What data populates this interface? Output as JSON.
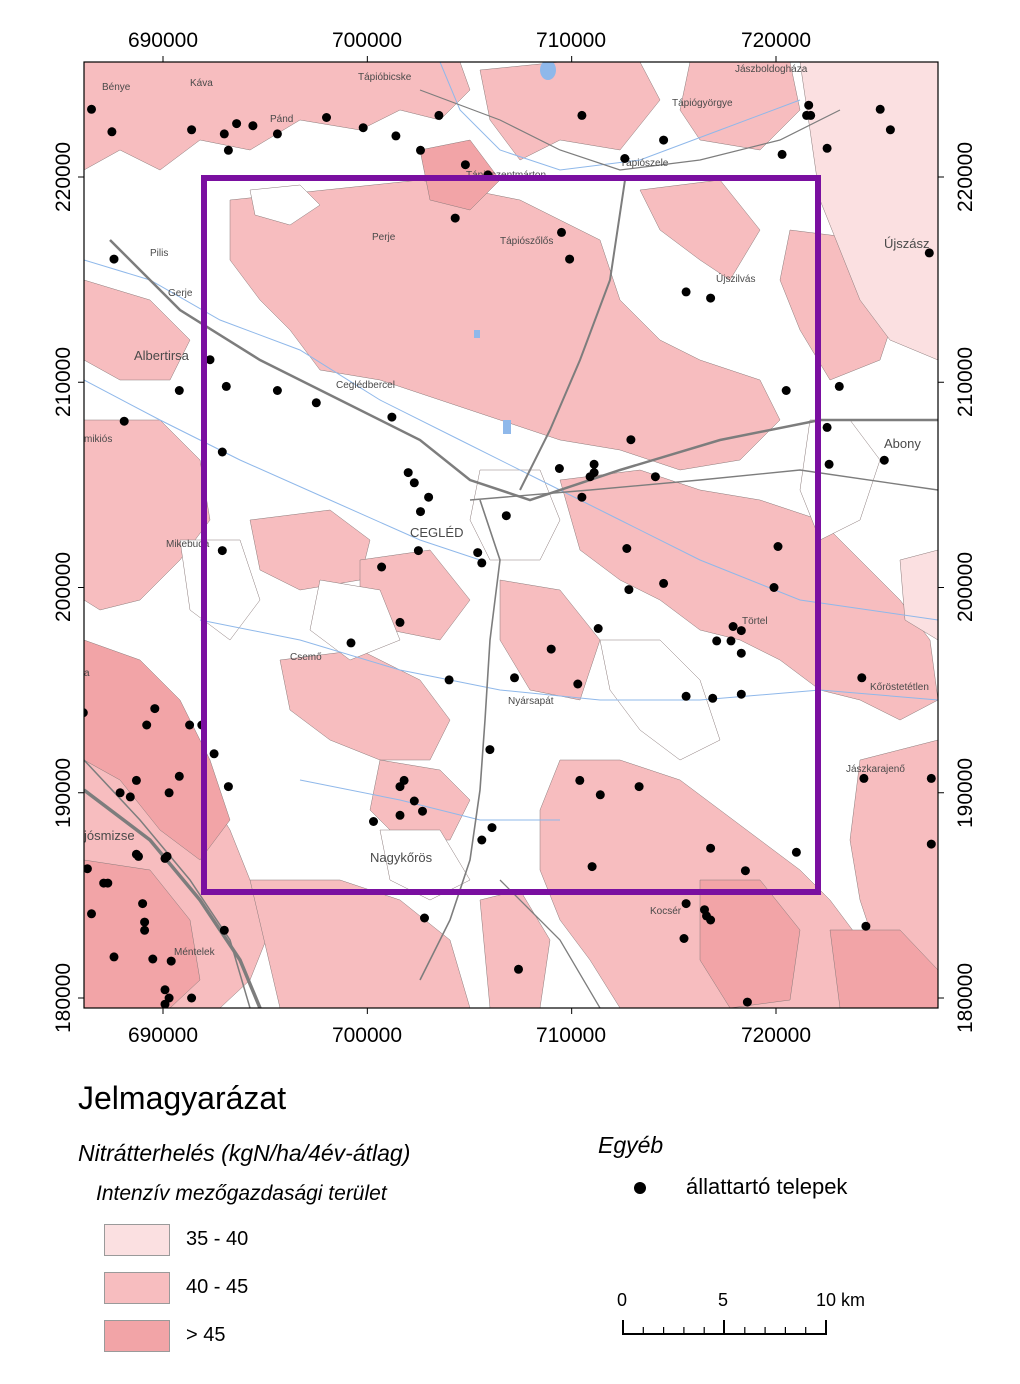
{
  "map": {
    "x_ticks": [
      "690000",
      "700000",
      "710000",
      "720000"
    ],
    "y_ticks": [
      "220000",
      "210000",
      "200000",
      "190000",
      "180000"
    ],
    "x_tick_values": [
      690000,
      700000,
      710000,
      720000
    ],
    "y_tick_values": [
      220000,
      210000,
      200000,
      190000,
      180000
    ],
    "study_area_color": "#7a0fa0",
    "colors": {
      "class_35_40": "#fbe0e1",
      "class_40_45": "#f7bdbf",
      "class_gt_45": "#f2a4a7",
      "road": "#7d7d7d",
      "water": "#8fb8ea"
    },
    "places": {
      "benye": "Bénye",
      "kava": "Káva",
      "pand": "Pánd",
      "tapiobicske": "Tápióbicske",
      "tapiogyorgye": "Tápiógyörgye",
      "jaszboldoghaza": "Jászboldogháza",
      "tapioszele": "Tápiószele",
      "tapioszentmarton": "Tápiószentmárton",
      "tapioszolos": "Tápiószőlős",
      "ujszilvas": "Újszilvás",
      "ujszasz": "Újszász",
      "pilis": "Pilis",
      "albertirsa": "Albertirsa",
      "ceglebercel": "Ceglédbercel",
      "miklos": "mikiós",
      "abony": "Abony",
      "cegled": "CEGLÉD",
      "mikebuda": "Mikebuda",
      "tortel": "Törtel",
      "csemo": "Csemő",
      "nyarsapat": "Nyársapát",
      "korosteteten": "Kőröstetétlen",
      "jaszkarajeno": "Jászkarajenő",
      "ujosmizse": "jósmizse",
      "nagykoros": "Nagykőrös",
      "kocser": "Kocsér",
      "mentelek": "Méntelek",
      "perje": "Perje",
      "gerje": "Gerje",
      "a": "a"
    },
    "farms": [
      [
        686.5,
        223.3
      ],
      [
        687.5,
        222.2
      ],
      [
        691.4,
        222.3
      ],
      [
        693.6,
        222.6
      ],
      [
        693.0,
        222.1
      ],
      [
        694.4,
        222.5
      ],
      [
        695.6,
        222.1
      ],
      [
        693.2,
        221.3
      ],
      [
        698.0,
        222.9
      ],
      [
        699.8,
        222.4
      ],
      [
        701.4,
        222.0
      ],
      [
        702.6,
        221.3
      ],
      [
        703.5,
        223.0
      ],
      [
        704.8,
        220.6
      ],
      [
        705.9,
        220.1
      ],
      [
        710.5,
        223.0
      ],
      [
        714.5,
        221.8
      ],
      [
        712.6,
        220.9
      ],
      [
        720.3,
        221.1
      ],
      [
        721.6,
        223.5
      ],
      [
        721.5,
        223.0
      ],
      [
        721.7,
        223.0
      ],
      [
        725.1,
        223.3
      ],
      [
        725.6,
        222.3
      ],
      [
        722.5,
        221.4
      ],
      [
        704.3,
        218.0
      ],
      [
        709.5,
        217.3
      ],
      [
        709.9,
        216.0
      ],
      [
        687.6,
        216.0
      ],
      [
        715.6,
        214.4
      ],
      [
        716.8,
        214.1
      ],
      [
        727.5,
        216.3
      ],
      [
        692.3,
        211.1
      ],
      [
        693.1,
        209.8
      ],
      [
        695.6,
        209.6
      ],
      [
        690.8,
        209.6
      ],
      [
        697.5,
        209.0
      ],
      [
        701.2,
        208.3
      ],
      [
        688.1,
        208.1
      ],
      [
        692.9,
        206.6
      ],
      [
        702.0,
        205.6
      ],
      [
        702.3,
        205.1
      ],
      [
        703.0,
        204.4
      ],
      [
        702.6,
        203.7
      ],
      [
        706.8,
        203.5
      ],
      [
        709.4,
        205.8
      ],
      [
        711.1,
        206.0
      ],
      [
        711.1,
        205.6
      ],
      [
        710.9,
        205.4
      ],
      [
        712.9,
        207.2
      ],
      [
        714.1,
        205.4
      ],
      [
        710.5,
        204.4
      ],
      [
        720.5,
        209.6
      ],
      [
        723.1,
        209.8
      ],
      [
        722.5,
        207.8
      ],
      [
        722.6,
        206.0
      ],
      [
        725.3,
        206.2
      ],
      [
        692.9,
        201.8
      ],
      [
        700.7,
        201.0
      ],
      [
        702.5,
        201.8
      ],
      [
        705.4,
        201.7
      ],
      [
        705.6,
        201.2
      ],
      [
        712.7,
        201.9
      ],
      [
        714.5,
        200.2
      ],
      [
        712.8,
        199.9
      ],
      [
        720.1,
        202.0
      ],
      [
        719.9,
        200.0
      ],
      [
        701.6,
        198.3
      ],
      [
        699.2,
        197.3
      ],
      [
        711.3,
        198.0
      ],
      [
        709.0,
        197.0
      ],
      [
        717.9,
        198.1
      ],
      [
        718.3,
        197.9
      ],
      [
        717.1,
        197.4
      ],
      [
        717.8,
        197.4
      ],
      [
        718.3,
        196.8
      ],
      [
        704.0,
        195.5
      ],
      [
        707.2,
        195.6
      ],
      [
        710.3,
        195.3
      ],
      [
        715.6,
        194.7
      ],
      [
        716.9,
        194.6
      ],
      [
        718.3,
        194.8
      ],
      [
        724.2,
        195.6
      ],
      [
        686.1,
        193.9
      ],
      [
        689.2,
        193.3
      ],
      [
        689.6,
        194.1
      ],
      [
        691.3,
        193.3
      ],
      [
        691.9,
        193.3
      ],
      [
        692.5,
        191.9
      ],
      [
        706.0,
        192.1
      ],
      [
        688.7,
        190.6
      ],
      [
        690.8,
        190.8
      ],
      [
        693.2,
        190.3
      ],
      [
        687.9,
        190.0
      ],
      [
        688.4,
        189.8
      ],
      [
        690.3,
        190.0
      ],
      [
        701.8,
        190.6
      ],
      [
        701.6,
        190.3
      ],
      [
        702.3,
        189.6
      ],
      [
        702.7,
        189.1
      ],
      [
        710.4,
        190.6
      ],
      [
        711.4,
        189.9
      ],
      [
        713.3,
        190.3
      ],
      [
        724.3,
        190.7
      ],
      [
        727.6,
        190.7
      ],
      [
        700.3,
        188.6
      ],
      [
        701.6,
        188.9
      ],
      [
        706.1,
        188.3
      ],
      [
        705.6,
        187.7
      ],
      [
        690.1,
        186.8
      ],
      [
        688.7,
        187.0
      ],
      [
        688.8,
        186.9
      ],
      [
        690.2,
        186.9
      ],
      [
        716.8,
        187.3
      ],
      [
        721.0,
        187.1
      ],
      [
        686.3,
        186.3
      ],
      [
        687.1,
        185.6
      ],
      [
        687.3,
        185.6
      ],
      [
        711.0,
        186.4
      ],
      [
        718.5,
        186.2
      ],
      [
        689.0,
        184.6
      ],
      [
        686.5,
        184.1
      ],
      [
        689.1,
        183.7
      ],
      [
        689.1,
        183.3
      ],
      [
        693.0,
        183.3
      ],
      [
        702.8,
        183.9
      ],
      [
        715.6,
        184.6
      ],
      [
        716.5,
        184.3
      ],
      [
        716.8,
        183.8
      ],
      [
        724.4,
        183.5
      ],
      [
        727.6,
        187.5
      ],
      [
        687.6,
        182.0
      ],
      [
        689.5,
        181.9
      ],
      [
        690.4,
        181.8
      ],
      [
        716.6,
        184.0
      ],
      [
        715.5,
        182.9
      ],
      [
        707.4,
        181.4
      ],
      [
        690.1,
        180.4
      ],
      [
        690.3,
        180.0
      ],
      [
        691.4,
        180.0
      ],
      [
        690.1,
        179.7
      ],
      [
        718.6,
        179.8
      ]
    ]
  },
  "legend": {
    "title": "Jelmagyarázat",
    "subtitle": "Nitrátterhelés (kgN/ha/4év-átlag)",
    "category": "Intenzív mezőgazdasági terület",
    "classes": [
      {
        "label": "35 - 40",
        "color": "#fbe0e1"
      },
      {
        "label": "40 - 45",
        "color": "#f7bdbf"
      },
      {
        "label": "> 45",
        "color": "#f2a4a7"
      }
    ],
    "other_title": "Egyéb",
    "farm_label": "állattartó telepek",
    "scale": {
      "label_0": "0",
      "label_5": "5",
      "label_10": "10 km"
    }
  }
}
